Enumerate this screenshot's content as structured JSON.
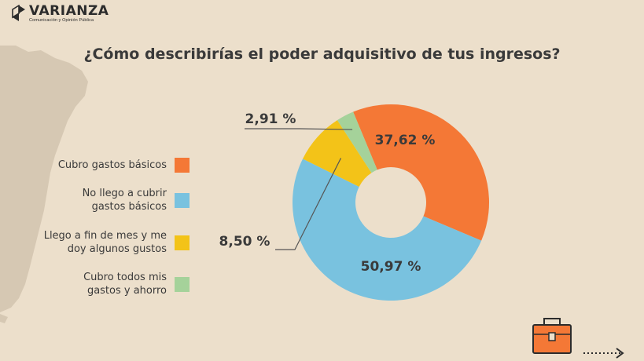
{
  "brand": {
    "name": "VARIANZA",
    "tagline": "Comunicación y Opinión Pública"
  },
  "chart_data": {
    "type": "pie",
    "donut": true,
    "title": "¿Cómo describirías el poder adquisitivo de tus ingresos?",
    "unit": "%",
    "legend_position": "left",
    "slices": [
      {
        "label": "Cubro gastos básicos",
        "value": 37.62,
        "display": "37,62 %",
        "color": "#f47836"
      },
      {
        "label": "No llego a cubrir gastos básicos",
        "label_lines": [
          "No llego a cubrir",
          "gastos básicos"
        ],
        "value": 50.97,
        "display": "50,97 %",
        "color": "#79c2df"
      },
      {
        "label": "Llego a fin de mes y me doy algunos gustos",
        "label_lines": [
          "Llego a fin de mes y me",
          "doy algunos gustos"
        ],
        "value": 8.5,
        "display": "8,50 %",
        "color": "#f3c318"
      },
      {
        "label": "Cubro todos mis gastos y ahorro",
        "label_lines": [
          "Cubro todos mis",
          "gastos y ahorro"
        ],
        "value": 2.91,
        "display": "2,91 %",
        "color": "#a5d29a"
      }
    ]
  },
  "colors": {
    "background": "#ecdfcb",
    "map": "#d6c8b3",
    "text": "#3a3a3a",
    "leader_line": "#555555"
  },
  "footer": {
    "icon": "briefcase-icon",
    "arrow": "dotted-arrow-icon"
  }
}
